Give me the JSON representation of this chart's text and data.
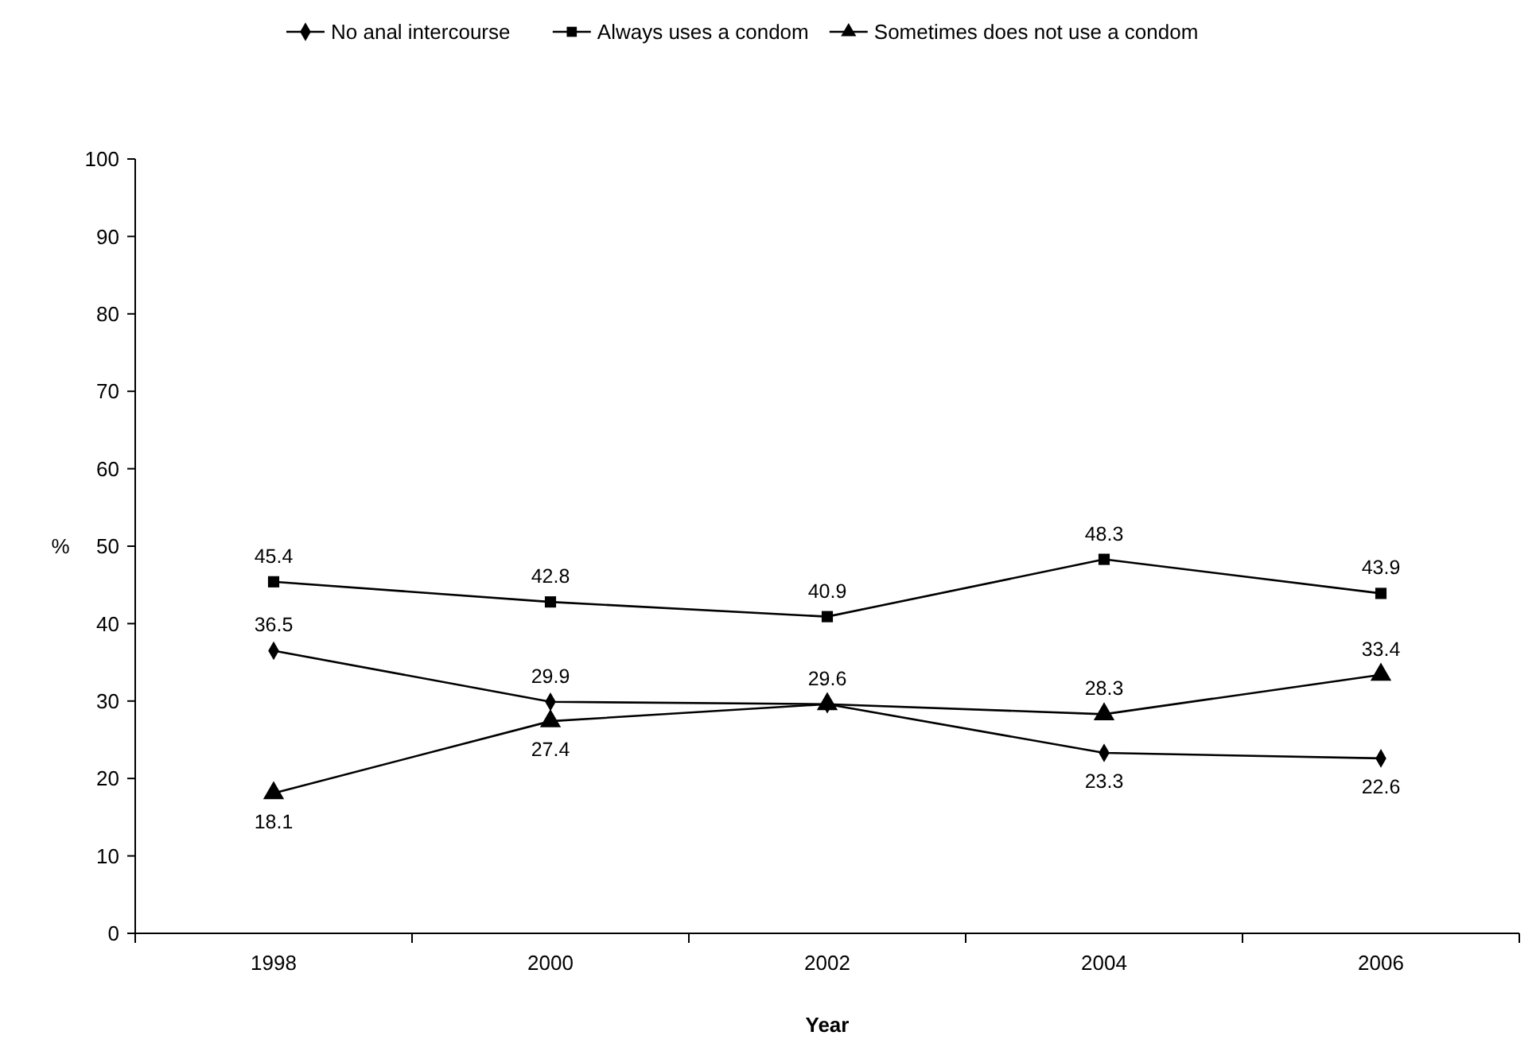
{
  "chart_data": {
    "type": "line",
    "xlabel": "Year",
    "ylabel": "%",
    "categories": [
      "1998",
      "2000",
      "2002",
      "2004",
      "2006"
    ],
    "ylim": [
      0,
      100
    ],
    "yticks": [
      0,
      10,
      20,
      30,
      40,
      50,
      60,
      70,
      80,
      90,
      100
    ],
    "legend": "top",
    "grid": false,
    "series": [
      {
        "name": "No anal intercourse",
        "color": "#000000",
        "marker": "diamond",
        "values": [
          36.5,
          29.9,
          29.6,
          23.3,
          22.6
        ],
        "value_labels": [
          "36.5",
          "29.9",
          "29.6",
          "23.3",
          "22.6"
        ]
      },
      {
        "name": "Always uses a condom",
        "color": "#000000",
        "marker": "square",
        "values": [
          45.4,
          42.8,
          40.9,
          48.3,
          43.9
        ],
        "value_labels": [
          "45.4",
          "42.8",
          "40.9",
          "48.3",
          "43.9"
        ]
      },
      {
        "name": "Sometimes does not use a condom",
        "color": "#000000",
        "marker": "triangle",
        "values": [
          18.1,
          27.4,
          29.6,
          28.3,
          33.4
        ],
        "value_labels": [
          "18.1",
          "27.4",
          null,
          "28.3",
          "33.4"
        ]
      }
    ]
  }
}
